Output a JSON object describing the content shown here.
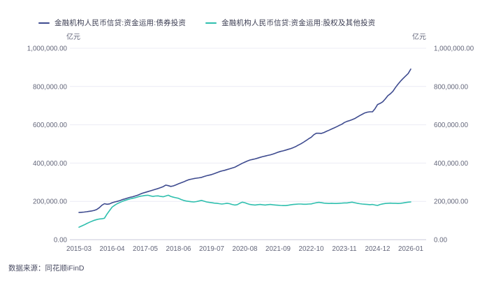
{
  "legend": [
    {
      "label": "金融机构人民币信贷:资金运用:债券投资",
      "color": "#3e4b8f"
    },
    {
      "label": "金融机构人民币信贷:资金运用:股权及其他投资",
      "color": "#2fbfae"
    }
  ],
  "left_axis_unit": "亿元",
  "right_axis_unit": "亿元",
  "source": "数据来源：同花顺iFinD",
  "colors": {
    "grid": "#ececf5",
    "axis_line": "#c8c9d8",
    "axis_text": "#63667a"
  },
  "chart_data": {
    "type": "line",
    "frequency": "monthly",
    "x_start": "2015-03",
    "x_end": "2026-01",
    "x_tick_labels": [
      "2015-03",
      "2016-04",
      "2017-05",
      "2018-06",
      "2019-07",
      "2020-08",
      "2021-09",
      "2022-10",
      "2023-11",
      "2024-12",
      "2026-01"
    ],
    "y_tick_labels": [
      "0.00",
      "200,000.00",
      "400,000.00",
      "600,000.00",
      "800,000.00",
      "1,000,000.00"
    ],
    "ylim": [
      0,
      1000000
    ],
    "grid": true,
    "legend_position": "top-left",
    "dual_axis_mirrored": true,
    "series": [
      {
        "name": "金融机构人民币信贷:资金运用:债券投资",
        "color": "#3e4b8f",
        "values": [
          142000,
          143000,
          144000,
          146000,
          148000,
          150000,
          153000,
          158000,
          167000,
          180000,
          188000,
          185000,
          187000,
          193000,
          197000,
          200000,
          204000,
          209000,
          213000,
          217000,
          221000,
          224000,
          228000,
          232000,
          238000,
          243000,
          247000,
          251000,
          255000,
          259000,
          263000,
          267000,
          272000,
          277000,
          285000,
          282000,
          278000,
          281000,
          286000,
          292000,
          297000,
          302000,
          308000,
          313000,
          316000,
          319000,
          321000,
          323000,
          325000,
          330000,
          334000,
          337000,
          340000,
          345000,
          350000,
          355000,
          359000,
          362000,
          366000,
          370000,
          374000,
          378000,
          385000,
          392000,
          399000,
          405000,
          411000,
          416000,
          419000,
          422000,
          426000,
          430000,
          434000,
          437000,
          440000,
          443000,
          447000,
          452000,
          457000,
          461000,
          464000,
          468000,
          472000,
          476000,
          481000,
          487000,
          494000,
          501000,
          509000,
          518000,
          527000,
          535000,
          548000,
          556000,
          556000,
          555000,
          560000,
          566000,
          572000,
          578000,
          584000,
          590000,
          597000,
          603000,
          612000,
          618000,
          622000,
          627000,
          632000,
          640000,
          648000,
          655000,
          662000,
          666000,
          668000,
          668000,
          684000,
          706000,
          712000,
          720000,
          735000,
          752000,
          762000,
          775000,
          795000,
          812000,
          828000,
          842000,
          855000,
          868000,
          891000
        ]
      },
      {
        "name": "金融机构人民币信贷:资金运用:股权及其他投资",
        "color": "#2fbfae",
        "values": [
          65000,
          71000,
          77000,
          84000,
          90000,
          96000,
          101000,
          105000,
          108000,
          109000,
          112000,
          134000,
          152000,
          170000,
          180000,
          188000,
          194000,
          200000,
          205000,
          209000,
          213000,
          216000,
          219000,
          223000,
          227000,
          229000,
          231000,
          232000,
          229000,
          226000,
          228000,
          229000,
          226000,
          224000,
          228000,
          232000,
          226000,
          222000,
          219000,
          216000,
          210000,
          205000,
          202000,
          200000,
          198000,
          197000,
          199000,
          202000,
          205000,
          201000,
          197000,
          195000,
          193000,
          191000,
          190000,
          188000,
          186000,
          188000,
          190000,
          188000,
          184000,
          181000,
          183000,
          190000,
          196000,
          193000,
          188000,
          184000,
          182000,
          181000,
          183000,
          184000,
          182000,
          181000,
          183000,
          184000,
          182000,
          181000,
          180000,
          179000,
          178000,
          178000,
          180000,
          182000,
          184000,
          185000,
          186000,
          186000,
          185000,
          185000,
          186000,
          187000,
          190000,
          193000,
          195000,
          193000,
          191000,
          190000,
          189000,
          190000,
          189000,
          189000,
          190000,
          191000,
          192000,
          192000,
          194000,
          196000,
          193000,
          190000,
          188000,
          186000,
          185000,
          184000,
          183000,
          184000,
          181000,
          179000,
          184000,
          187000,
          189000,
          190000,
          191000,
          190000,
          190000,
          189000,
          190000,
          192000,
          194000,
          196000,
          197000
        ]
      }
    ]
  }
}
